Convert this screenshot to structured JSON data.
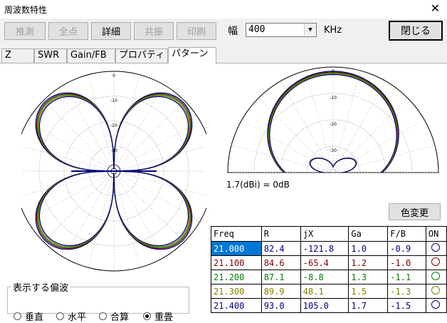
{
  "window": {
    "title": "周波数特性",
    "close_glyph": "✕"
  },
  "toolbar": {
    "buttons": [
      {
        "label": "推測",
        "enabled": false
      },
      {
        "label": "全点",
        "enabled": false
      },
      {
        "label": "詳細",
        "enabled": true
      },
      {
        "label": "共振",
        "enabled": false
      },
      {
        "label": "印刷",
        "enabled": false
      }
    ],
    "width_label": "幅",
    "width_value": "400",
    "width_unit": "KHz",
    "close_label": "閉じる"
  },
  "tabs": [
    {
      "label": "Z",
      "active": false
    },
    {
      "label": "SWR",
      "active": false
    },
    {
      "label": "Gain/FB",
      "active": false
    },
    {
      "label": "プロパティ",
      "active": false
    },
    {
      "label": "パターン",
      "active": true
    }
  ],
  "plots": {
    "horizontal": {
      "ring_labels": [
        "0",
        "-10",
        "-20",
        "-30"
      ]
    },
    "vertical": {
      "ring_labels": [
        "0",
        "-10",
        "-20",
        "-30"
      ]
    },
    "ratio_text": "1.7(dBi) = 0dB"
  },
  "color_change_label": "色変更",
  "table": {
    "headers": [
      "Freq",
      "R",
      "jX",
      "Ga",
      "F/B",
      "ON"
    ],
    "rows": [
      {
        "freq": "21.000",
        "r": "82.4",
        "jx": "-121.8",
        "ga": "1.0",
        "fb": "-0.9",
        "color": "#000080",
        "selected": true
      },
      {
        "freq": "21.100",
        "r": "84.6",
        "jx": "-65.4",
        "ga": "1.2",
        "fb": "-1.0",
        "color": "#800000",
        "selected": false
      },
      {
        "freq": "21.200",
        "r": "87.1",
        "jx": "-8.8",
        "ga": "1.3",
        "fb": "-1.1",
        "color": "#008000",
        "selected": false
      },
      {
        "freq": "21.300",
        "r": "89.9",
        "jx": "48.1",
        "ga": "1.5",
        "fb": "-1.3",
        "color": "#808000",
        "selected": false
      },
      {
        "freq": "21.400",
        "r": "93.0",
        "jx": "105.0",
        "ga": "1.7",
        "fb": "-1.5",
        "color": "#000080",
        "selected": false
      }
    ]
  },
  "polarization": {
    "legend": "表示する偏波",
    "options": [
      {
        "label": "垂直",
        "checked": false
      },
      {
        "label": "水平",
        "checked": false
      },
      {
        "label": "合算",
        "checked": false
      },
      {
        "label": "重畳",
        "checked": true
      }
    ]
  }
}
